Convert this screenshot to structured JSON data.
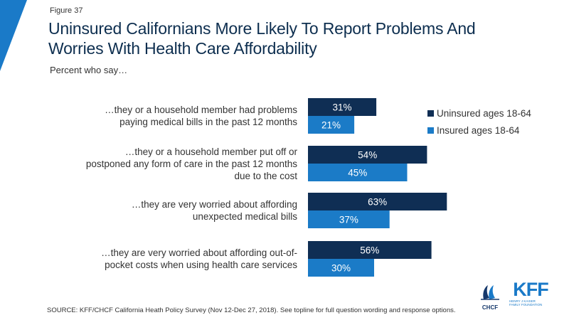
{
  "figure_label": "Figure 37",
  "title_line1": "Uninsured Californians More Likely To Report Problems And",
  "title_line2": "Worries With Health Care Affordability",
  "subtitle": "Percent who say…",
  "source": "SOURCE: KFF/CHCF California Heath Policy Survey (Nov 12-Dec 27, 2018). See topline for full question wording and response options.",
  "logos": {
    "chcf_text": "CHCF",
    "kff_text": "KFF",
    "kff_sub_line1": "HENRY J KAISER",
    "kff_sub_line2": "FAMILY FOUNDATION"
  },
  "colors": {
    "uninsured": "#0f2e54",
    "insured": "#1b7bc7",
    "accent": "#1a7ac8"
  },
  "chart_data": {
    "type": "bar",
    "orientation": "horizontal",
    "categories": [
      [
        "…they or a household member had problems",
        "paying medical bills in the past 12 months"
      ],
      [
        "…they or a household member put off or",
        "postponed any form of care in the past 12 months",
        "due to the cost"
      ],
      [
        "…they are very worried about affording",
        "unexpected medical bills"
      ],
      [
        "…they are very worried about affording out-of-",
        "pocket costs when using health care services"
      ]
    ],
    "series": [
      {
        "name": "Uninsured ages 18-64",
        "values": [
          31,
          54,
          63,
          56
        ],
        "color": "#0f2e54"
      },
      {
        "name": "Insured ages 18-64",
        "values": [
          21,
          45,
          37,
          30
        ],
        "color": "#1b7bc7"
      }
    ],
    "value_suffix": "%",
    "legend_position": "right",
    "grid": false
  }
}
